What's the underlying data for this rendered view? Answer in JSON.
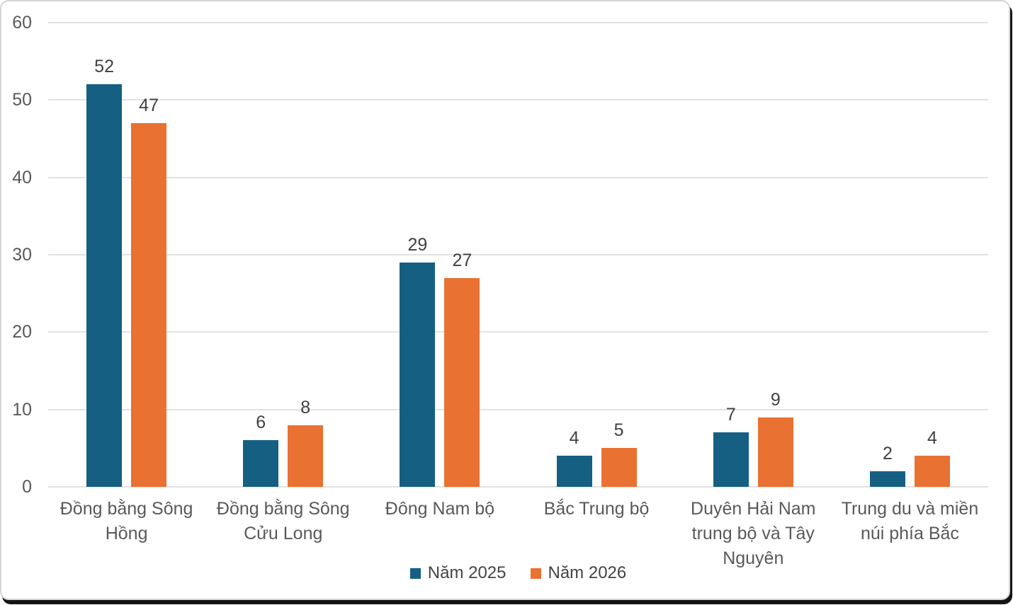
{
  "card": {
    "background": "#ffffff",
    "border_color": "#d6d6d6",
    "shadow_color": "#141414"
  },
  "chart_data": {
    "type": "bar",
    "title": "",
    "xlabel": "",
    "ylabel": "",
    "categories": [
      "Đồng bằng Sông Hồng",
      "Đồng bằng Sông Cửu Long",
      "Đông Nam bộ",
      "Bắc Trung bộ",
      "Duyên Hải Nam trung bộ và Tây Nguyên",
      "Trung du và miền núi phía Bắc"
    ],
    "series": [
      {
        "name": "Năm 2025",
        "color": "#156082",
        "values": [
          52,
          6,
          29,
          4,
          7,
          2
        ]
      },
      {
        "name": "Năm 2026",
        "color": "#E97132",
        "values": [
          47,
          8,
          27,
          5,
          9,
          4
        ]
      }
    ],
    "ylim": [
      0,
      60
    ],
    "yticks": [
      0,
      10,
      20,
      30,
      40,
      50,
      60
    ],
    "grid": true,
    "gridline_color": "#e2e2e2",
    "data_labels": true,
    "data_label_color": "#404040",
    "axis_text_color": "#595959",
    "legend_position": "bottom"
  }
}
